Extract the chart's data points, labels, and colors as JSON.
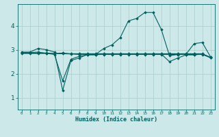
{
  "xlabel": "Humidex (Indice chaleur)",
  "ylabel": "",
  "background_color": "#cce8e8",
  "grid_color": "#aacccc",
  "line_color": "#006060",
  "xlim": [
    -0.5,
    23.5
  ],
  "ylim": [
    0.5,
    4.9
  ],
  "yticks": [
    1,
    2,
    3,
    4
  ],
  "xticks": [
    0,
    1,
    2,
    3,
    4,
    5,
    6,
    7,
    8,
    9,
    10,
    11,
    12,
    13,
    14,
    15,
    16,
    17,
    18,
    19,
    20,
    21,
    22,
    23
  ],
  "lines": [
    {
      "x": [
        0,
        1,
        2,
        3,
        4,
        5,
        6,
        7,
        8,
        9,
        10,
        11,
        12,
        13,
        14,
        15,
        16,
        17,
        18,
        19,
        20,
        21,
        22,
        23
      ],
      "y": [
        2.9,
        2.9,
        3.05,
        3.0,
        2.9,
        1.3,
        2.55,
        2.65,
        2.8,
        2.8,
        3.05,
        3.2,
        3.5,
        4.2,
        4.3,
        4.55,
        4.55,
        3.85,
        2.75,
        2.8,
        2.8,
        3.25,
        3.3,
        2.7
      ]
    },
    {
      "x": [
        0,
        1,
        2,
        3,
        4,
        5,
        6,
        7,
        8,
        9,
        10,
        11,
        12,
        13,
        14,
        15,
        16,
        17,
        18,
        19,
        20,
        21,
        22,
        23
      ],
      "y": [
        2.88,
        2.88,
        2.9,
        2.85,
        2.8,
        1.7,
        2.6,
        2.72,
        2.78,
        2.78,
        2.82,
        2.82,
        2.82,
        2.82,
        2.82,
        2.82,
        2.82,
        2.82,
        2.5,
        2.65,
        2.78,
        2.78,
        2.82,
        2.68
      ]
    },
    {
      "x": [
        0,
        1,
        2,
        3,
        4,
        5,
        6,
        7,
        8,
        9,
        10,
        11,
        12,
        13,
        14,
        15,
        16,
        17,
        18,
        19,
        20,
        21,
        22,
        23
      ],
      "y": [
        2.86,
        2.86,
        2.86,
        2.86,
        2.84,
        2.86,
        2.83,
        2.83,
        2.83,
        2.83,
        2.83,
        2.83,
        2.83,
        2.83,
        2.83,
        2.83,
        2.83,
        2.83,
        2.83,
        2.83,
        2.83,
        2.83,
        2.83,
        2.68
      ]
    },
    {
      "x": [
        0,
        1,
        2,
        3,
        4,
        5,
        6,
        7,
        8,
        9,
        10,
        11,
        12,
        13,
        14,
        15,
        16,
        17,
        18,
        19,
        20,
        21,
        22,
        23
      ],
      "y": [
        2.84,
        2.84,
        2.84,
        2.84,
        2.83,
        2.83,
        2.82,
        2.8,
        2.8,
        2.8,
        2.8,
        2.8,
        2.8,
        2.8,
        2.8,
        2.8,
        2.8,
        2.8,
        2.8,
        2.8,
        2.8,
        2.8,
        2.8,
        2.66
      ]
    }
  ]
}
